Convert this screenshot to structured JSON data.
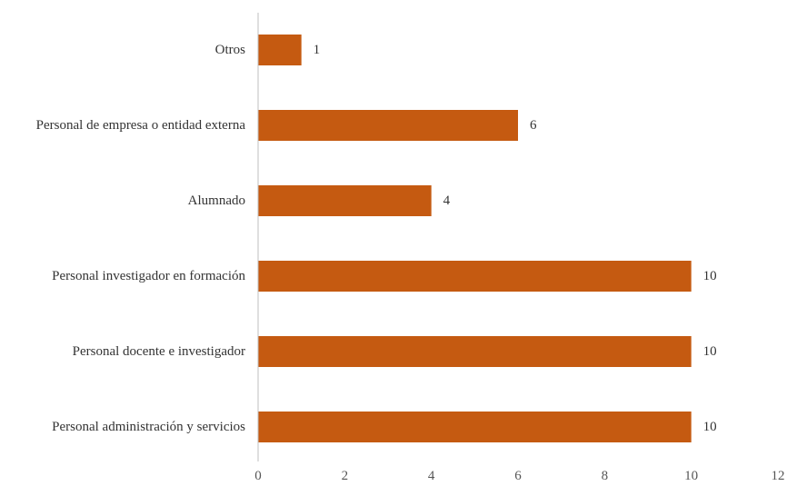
{
  "chart_data": {
    "type": "bar",
    "orientation": "horizontal",
    "categories": [
      "Otros",
      "Personal de empresa o entidad externa",
      "Alumnado",
      "Personal investigador en formación",
      "Personal docente e investigador",
      "Personal administración y servicios"
    ],
    "values": [
      1,
      6,
      4,
      10,
      10,
      10
    ],
    "data_labels": [
      "1",
      "6",
      "4",
      "10",
      "10",
      "10"
    ],
    "xlim": [
      0,
      12
    ],
    "xticks": [
      0,
      2,
      4,
      6,
      8,
      10,
      12
    ],
    "xtick_labels": [
      "0",
      "2",
      "4",
      "6",
      "8",
      "10",
      "12"
    ],
    "title": "",
    "xlabel": "",
    "ylabel": "",
    "grid": false,
    "legend": "none",
    "bar_color": "#C55A11"
  }
}
